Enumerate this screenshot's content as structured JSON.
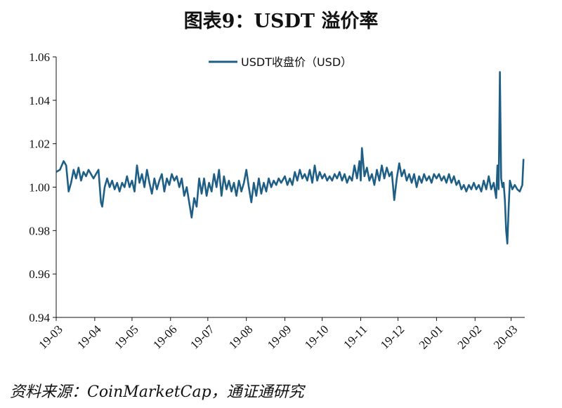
{
  "page": {
    "title": "图表9：USDT 溢价率",
    "source": "资料来源：CoinMarketCap，通证通研究"
  },
  "colors": {
    "series": "#1f5f85",
    "axis": "#111111"
  },
  "chart_data": {
    "type": "line",
    "title": "图表9：USDT 溢价率",
    "xlabel": "",
    "ylabel": "",
    "ylim": [
      0.94,
      1.06
    ],
    "yticks": [
      0.94,
      0.96,
      0.98,
      1.0,
      1.02,
      1.04,
      1.06
    ],
    "ytick_labels": [
      "0.94",
      "0.96",
      "0.98",
      "1.00",
      "1.02",
      "1.04",
      "1.06"
    ],
    "xlim": [
      "2019-03-01",
      "2020-03-12"
    ],
    "xticks": [
      "2019-03-01",
      "2019-04-01",
      "2019-05-01",
      "2019-06-01",
      "2019-07-01",
      "2019-08-01",
      "2019-09-01",
      "2019-10-01",
      "2019-11-01",
      "2019-12-01",
      "2020-01-01",
      "2020-02-01",
      "2020-03-01"
    ],
    "xtick_labels": [
      "19-03",
      "19-04",
      "19-05",
      "19-06",
      "19-07",
      "19-08",
      "19-09",
      "19-10",
      "19-11",
      "19-12",
      "20-01",
      "20-02",
      "20-03"
    ],
    "grid": false,
    "legend": "top-center",
    "series": [
      {
        "name": "USDT收盘价（USD）",
        "points": [
          [
            "2019-03-01",
            1.007
          ],
          [
            "2019-03-04",
            1.008
          ],
          [
            "2019-03-07",
            1.012
          ],
          [
            "2019-03-09",
            1.01
          ],
          [
            "2019-03-11",
            0.998
          ],
          [
            "2019-03-13",
            1.002
          ],
          [
            "2019-03-15",
            1.008
          ],
          [
            "2019-03-17",
            1.004
          ],
          [
            "2019-03-19",
            1.009
          ],
          [
            "2019-03-21",
            1.003
          ],
          [
            "2019-03-23",
            1.007
          ],
          [
            "2019-03-25",
            1.005
          ],
          [
            "2019-03-27",
            1.008
          ],
          [
            "2019-03-29",
            1.006
          ],
          [
            "2019-03-31",
            1.004
          ],
          [
            "2019-04-02",
            1.006
          ],
          [
            "2019-04-04",
            1.008
          ],
          [
            "2019-04-06",
            0.993
          ],
          [
            "2019-04-07",
            0.991
          ],
          [
            "2019-04-09",
            1.0
          ],
          [
            "2019-04-11",
            1.004
          ],
          [
            "2019-04-13",
            1.0
          ],
          [
            "2019-04-15",
            1.003
          ],
          [
            "2019-04-17",
            0.999
          ],
          [
            "2019-04-19",
            1.002
          ],
          [
            "2019-04-21",
            0.998
          ],
          [
            "2019-04-23",
            1.002
          ],
          [
            "2019-04-25",
            1.0
          ],
          [
            "2019-04-27",
            1.005
          ],
          [
            "2019-04-29",
            1.0
          ],
          [
            "2019-05-01",
            1.003
          ],
          [
            "2019-05-03",
            0.998
          ],
          [
            "2019-05-05",
            1.01
          ],
          [
            "2019-05-07",
            1.002
          ],
          [
            "2019-05-09",
            1.006
          ],
          [
            "2019-05-11",
            1.0
          ],
          [
            "2019-05-13",
            1.008
          ],
          [
            "2019-05-15",
            1.002
          ],
          [
            "2019-05-17",
            0.997
          ],
          [
            "2019-05-19",
            1.004
          ],
          [
            "2019-05-21",
            0.999
          ],
          [
            "2019-05-23",
            1.003
          ],
          [
            "2019-05-25",
            1.006
          ],
          [
            "2019-05-27",
            0.998
          ],
          [
            "2019-05-29",
            1.004
          ],
          [
            "2019-05-31",
            1.001
          ],
          [
            "2019-06-02",
            1.006
          ],
          [
            "2019-06-04",
            1.003
          ],
          [
            "2019-06-06",
            1.005
          ],
          [
            "2019-06-08",
            1.0
          ],
          [
            "2019-06-10",
            1.004
          ],
          [
            "2019-06-12",
            0.996
          ],
          [
            "2019-06-14",
            1.0
          ],
          [
            "2019-06-16",
            0.993
          ],
          [
            "2019-06-18",
            0.986
          ],
          [
            "2019-06-20",
            0.995
          ],
          [
            "2019-06-22",
            0.991
          ],
          [
            "2019-06-24",
            1.004
          ],
          [
            "2019-06-26",
            0.997
          ],
          [
            "2019-06-28",
            1.004
          ],
          [
            "2019-06-30",
            0.996
          ],
          [
            "2019-07-02",
            1.002
          ],
          [
            "2019-07-04",
            0.998
          ],
          [
            "2019-07-06",
            1.006
          ],
          [
            "2019-07-08",
            1.0
          ],
          [
            "2019-07-10",
            1.008
          ],
          [
            "2019-07-12",
            0.996
          ],
          [
            "2019-07-14",
            1.005
          ],
          [
            "2019-07-16",
            0.999
          ],
          [
            "2019-07-18",
            1.003
          ],
          [
            "2019-07-20",
            0.998
          ],
          [
            "2019-07-22",
            1.002
          ],
          [
            "2019-07-24",
            0.996
          ],
          [
            "2019-07-26",
            1.003
          ],
          [
            "2019-07-28",
            0.998
          ],
          [
            "2019-07-30",
            1.002
          ],
          [
            "2019-08-01",
            1.008
          ],
          [
            "2019-08-03",
            1.0
          ],
          [
            "2019-08-05",
            0.993
          ],
          [
            "2019-08-07",
            1.002
          ],
          [
            "2019-08-09",
            0.996
          ],
          [
            "2019-08-11",
            1.004
          ],
          [
            "2019-08-13",
            0.997
          ],
          [
            "2019-08-15",
            1.002
          ],
          [
            "2019-08-17",
            0.998
          ],
          [
            "2019-08-19",
            1.004
          ],
          [
            "2019-08-21",
            1.0
          ],
          [
            "2019-08-23",
            1.003
          ],
          [
            "2019-08-25",
            1.001
          ],
          [
            "2019-08-27",
            1.004
          ],
          [
            "2019-08-29",
            1.002
          ],
          [
            "2019-09-01",
            1.005
          ],
          [
            "2019-09-03",
            1.001
          ],
          [
            "2019-09-05",
            1.004
          ],
          [
            "2019-09-07",
            1.001
          ],
          [
            "2019-09-09",
            1.007
          ],
          [
            "2019-09-11",
            1.003
          ],
          [
            "2019-09-13",
            1.008
          ],
          [
            "2019-09-15",
            1.004
          ],
          [
            "2019-09-17",
            1.006
          ],
          [
            "2019-09-19",
            1.003
          ],
          [
            "2019-09-21",
            1.008
          ],
          [
            "2019-09-23",
            1.002
          ],
          [
            "2019-09-25",
            1.01
          ],
          [
            "2019-09-27",
            1.003
          ],
          [
            "2019-09-29",
            1.007
          ],
          [
            "2019-10-01",
            1.004
          ],
          [
            "2019-10-03",
            1.006
          ],
          [
            "2019-10-05",
            1.003
          ],
          [
            "2019-10-07",
            1.005
          ],
          [
            "2019-10-09",
            1.003
          ],
          [
            "2019-10-11",
            1.006
          ],
          [
            "2019-10-13",
            1.004
          ],
          [
            "2019-10-15",
            1.007
          ],
          [
            "2019-10-17",
            1.003
          ],
          [
            "2019-10-19",
            1.006
          ],
          [
            "2019-10-21",
            1.002
          ],
          [
            "2019-10-23",
            1.005
          ],
          [
            "2019-10-25",
            1.003
          ],
          [
            "2019-10-27",
            1.01
          ],
          [
            "2019-10-29",
            1.004
          ],
          [
            "2019-10-31",
            1.012
          ],
          [
            "2019-11-01",
            1.003
          ],
          [
            "2019-11-02",
            1.018
          ],
          [
            "2019-11-04",
            1.005
          ],
          [
            "2019-11-06",
            1.009
          ],
          [
            "2019-11-08",
            1.003
          ],
          [
            "2019-11-10",
            1.006
          ],
          [
            "2019-11-12",
            1.001
          ],
          [
            "2019-11-14",
            1.008
          ],
          [
            "2019-11-16",
            1.003
          ],
          [
            "2019-11-18",
            1.01
          ],
          [
            "2019-11-20",
            1.004
          ],
          [
            "2019-11-22",
            1.009
          ],
          [
            "2019-11-24",
            1.005
          ],
          [
            "2019-11-26",
            1.007
          ],
          [
            "2019-11-28",
            0.994
          ],
          [
            "2019-11-30",
            1.004
          ],
          [
            "2019-12-02",
            1.011
          ],
          [
            "2019-12-04",
            1.005
          ],
          [
            "2019-12-06",
            1.008
          ],
          [
            "2019-12-08",
            1.003
          ],
          [
            "2019-12-10",
            1.006
          ],
          [
            "2019-12-12",
            1.002
          ],
          [
            "2019-12-14",
            1.006
          ],
          [
            "2019-12-16",
            1.0
          ],
          [
            "2019-12-18",
            1.005
          ],
          [
            "2019-12-20",
            1.002
          ],
          [
            "2019-12-22",
            1.006
          ],
          [
            "2019-12-24",
            1.003
          ],
          [
            "2019-12-26",
            1.005
          ],
          [
            "2019-12-28",
            1.002
          ],
          [
            "2019-12-30",
            1.006
          ],
          [
            "2020-01-01",
            1.004
          ],
          [
            "2020-01-03",
            1.006
          ],
          [
            "2020-01-05",
            1.003
          ],
          [
            "2020-01-07",
            1.005
          ],
          [
            "2020-01-09",
            1.002
          ],
          [
            "2020-01-11",
            1.006
          ],
          [
            "2020-01-13",
            1.002
          ],
          [
            "2020-01-15",
            1.005
          ],
          [
            "2020-01-17",
            1.001
          ],
          [
            "2020-01-19",
            1.003
          ],
          [
            "2020-01-21",
            0.999
          ],
          [
            "2020-01-23",
            1.001
          ],
          [
            "2020-01-25",
            0.998
          ],
          [
            "2020-01-27",
            1.001
          ],
          [
            "2020-01-29",
            0.999
          ],
          [
            "2020-01-31",
            1.002
          ],
          [
            "2020-02-02",
            0.999
          ],
          [
            "2020-02-04",
            1.001
          ],
          [
            "2020-02-06",
            0.998
          ],
          [
            "2020-02-08",
            1.003
          ],
          [
            "2020-02-10",
            0.999
          ],
          [
            "2020-02-12",
            1.005
          ],
          [
            "2020-02-14",
            0.999
          ],
          [
            "2020-02-16",
            1.002
          ],
          [
            "2020-02-18",
            0.995
          ],
          [
            "2020-02-19",
            1.01
          ],
          [
            "2020-02-20",
            0.999
          ],
          [
            "2020-02-21",
            1.053
          ],
          [
            "2020-02-22",
            1.004
          ],
          [
            "2020-02-23",
            1.0
          ],
          [
            "2020-02-24",
            1.002
          ],
          [
            "2020-02-25",
            0.994
          ],
          [
            "2020-02-26",
            0.98
          ],
          [
            "2020-02-27",
            0.974
          ],
          [
            "2020-02-28",
            0.99
          ],
          [
            "2020-02-29",
            1.003
          ],
          [
            "2020-03-02",
            0.999
          ],
          [
            "2020-03-04",
            1.001
          ],
          [
            "2020-03-06",
            0.999
          ],
          [
            "2020-03-08",
            0.998
          ],
          [
            "2020-03-10",
            1.001
          ],
          [
            "2020-03-11",
            1.013
          ]
        ]
      }
    ]
  }
}
